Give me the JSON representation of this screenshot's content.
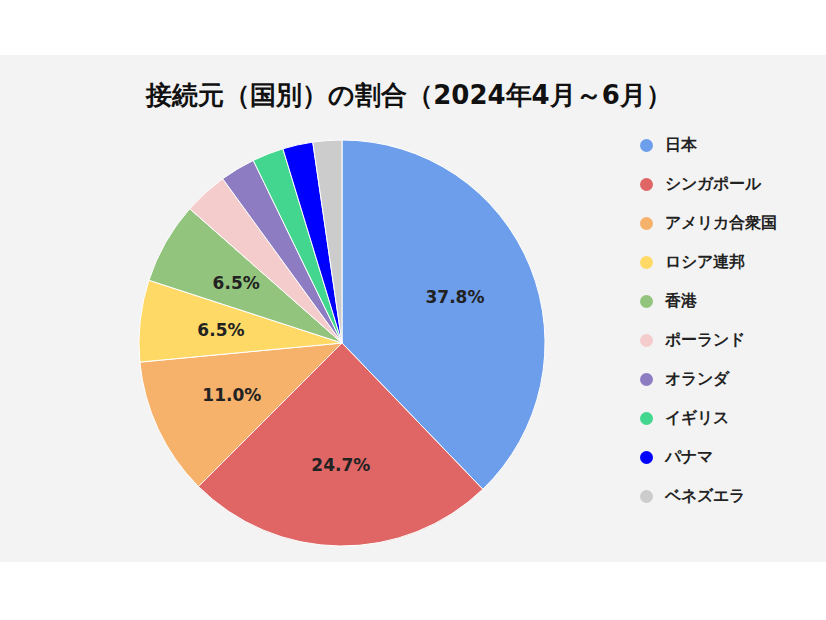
{
  "chart_data": {
    "type": "pie",
    "title": "接続元（国別）の割合（2024年4月～6月）",
    "categories": [
      "日本",
      "シンガポール",
      "アメリカ合衆国",
      "ロシア連邦",
      "香港",
      "ポーランド",
      "オランダ",
      "イギリス",
      "パナマ",
      "ベネズエラ"
    ],
    "values": [
      37.8,
      24.7,
      11.0,
      6.5,
      6.5,
      3.5,
      2.8,
      2.5,
      2.4,
      2.3
    ],
    "value_labels": [
      "37.8%",
      "24.7%",
      "11.0%",
      "6.5%",
      "6.5%",
      null,
      null,
      null,
      null,
      null
    ],
    "colors": [
      "#6d9eeb",
      "#e06666",
      "#f6b26b",
      "#ffd966",
      "#93c47d",
      "#f4cccc",
      "#8e7cc3",
      "#42d68e",
      "#0000ff",
      "#cccccc"
    ],
    "data_labels": true,
    "legend": "right"
  }
}
